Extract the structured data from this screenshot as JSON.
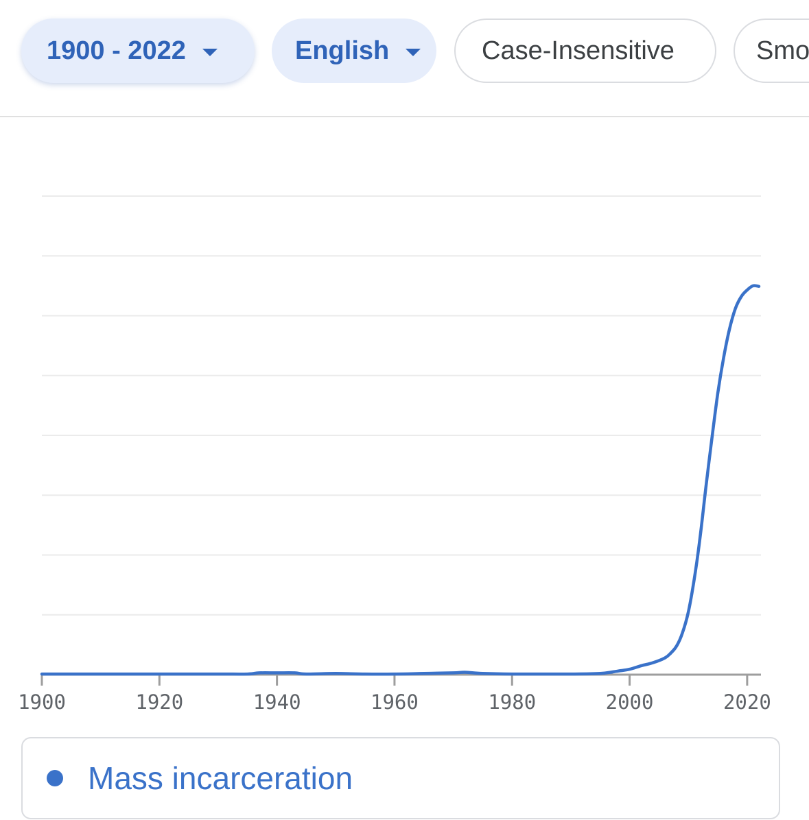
{
  "filters": {
    "year_range": "1900 - 2022",
    "corpus": "English",
    "case": "Case-Insensitive",
    "smoothing": "Smo"
  },
  "colors": {
    "series": "#3a72c9",
    "chip_selected_bg": "#e6edfb",
    "chip_selected_text": "#2f63b8",
    "gridline": "#ebebeb",
    "axis": "#9e9e9e"
  },
  "chart_data": {
    "type": "line",
    "title": "",
    "xlabel": "",
    "ylabel": "",
    "xlim": [
      1900,
      2022
    ],
    "ylim": [
      0,
      8
    ],
    "grid": true,
    "y_ticks_labeled": false,
    "x_ticks": [
      "1900",
      "1920",
      "1940",
      "1960",
      "1980",
      "2000",
      "2020"
    ],
    "legend_position": "bottom",
    "series": [
      {
        "name": "Mass incarceration",
        "x": [
          1900,
          1910,
          1920,
          1930,
          1935,
          1937,
          1940,
          1943,
          1945,
          1950,
          1955,
          1960,
          1965,
          1970,
          1972,
          1975,
          1980,
          1985,
          1990,
          1995,
          1998,
          2000,
          2002,
          2004,
          2006,
          2007,
          2008,
          2009,
          2010,
          2011,
          2012,
          2013,
          2014,
          2015,
          2016,
          2017,
          2018,
          2019,
          2020,
          2021,
          2022
        ],
        "y": [
          0.01,
          0.01,
          0.01,
          0.01,
          0.01,
          0.03,
          0.03,
          0.03,
          0.01,
          0.02,
          0.01,
          0.01,
          0.02,
          0.03,
          0.04,
          0.02,
          0.01,
          0.01,
          0.01,
          0.02,
          0.06,
          0.09,
          0.15,
          0.2,
          0.28,
          0.36,
          0.48,
          0.7,
          1.05,
          1.6,
          2.3,
          3.15,
          3.95,
          4.7,
          5.3,
          5.78,
          6.12,
          6.32,
          6.43,
          6.5,
          6.49
        ]
      }
    ]
  }
}
